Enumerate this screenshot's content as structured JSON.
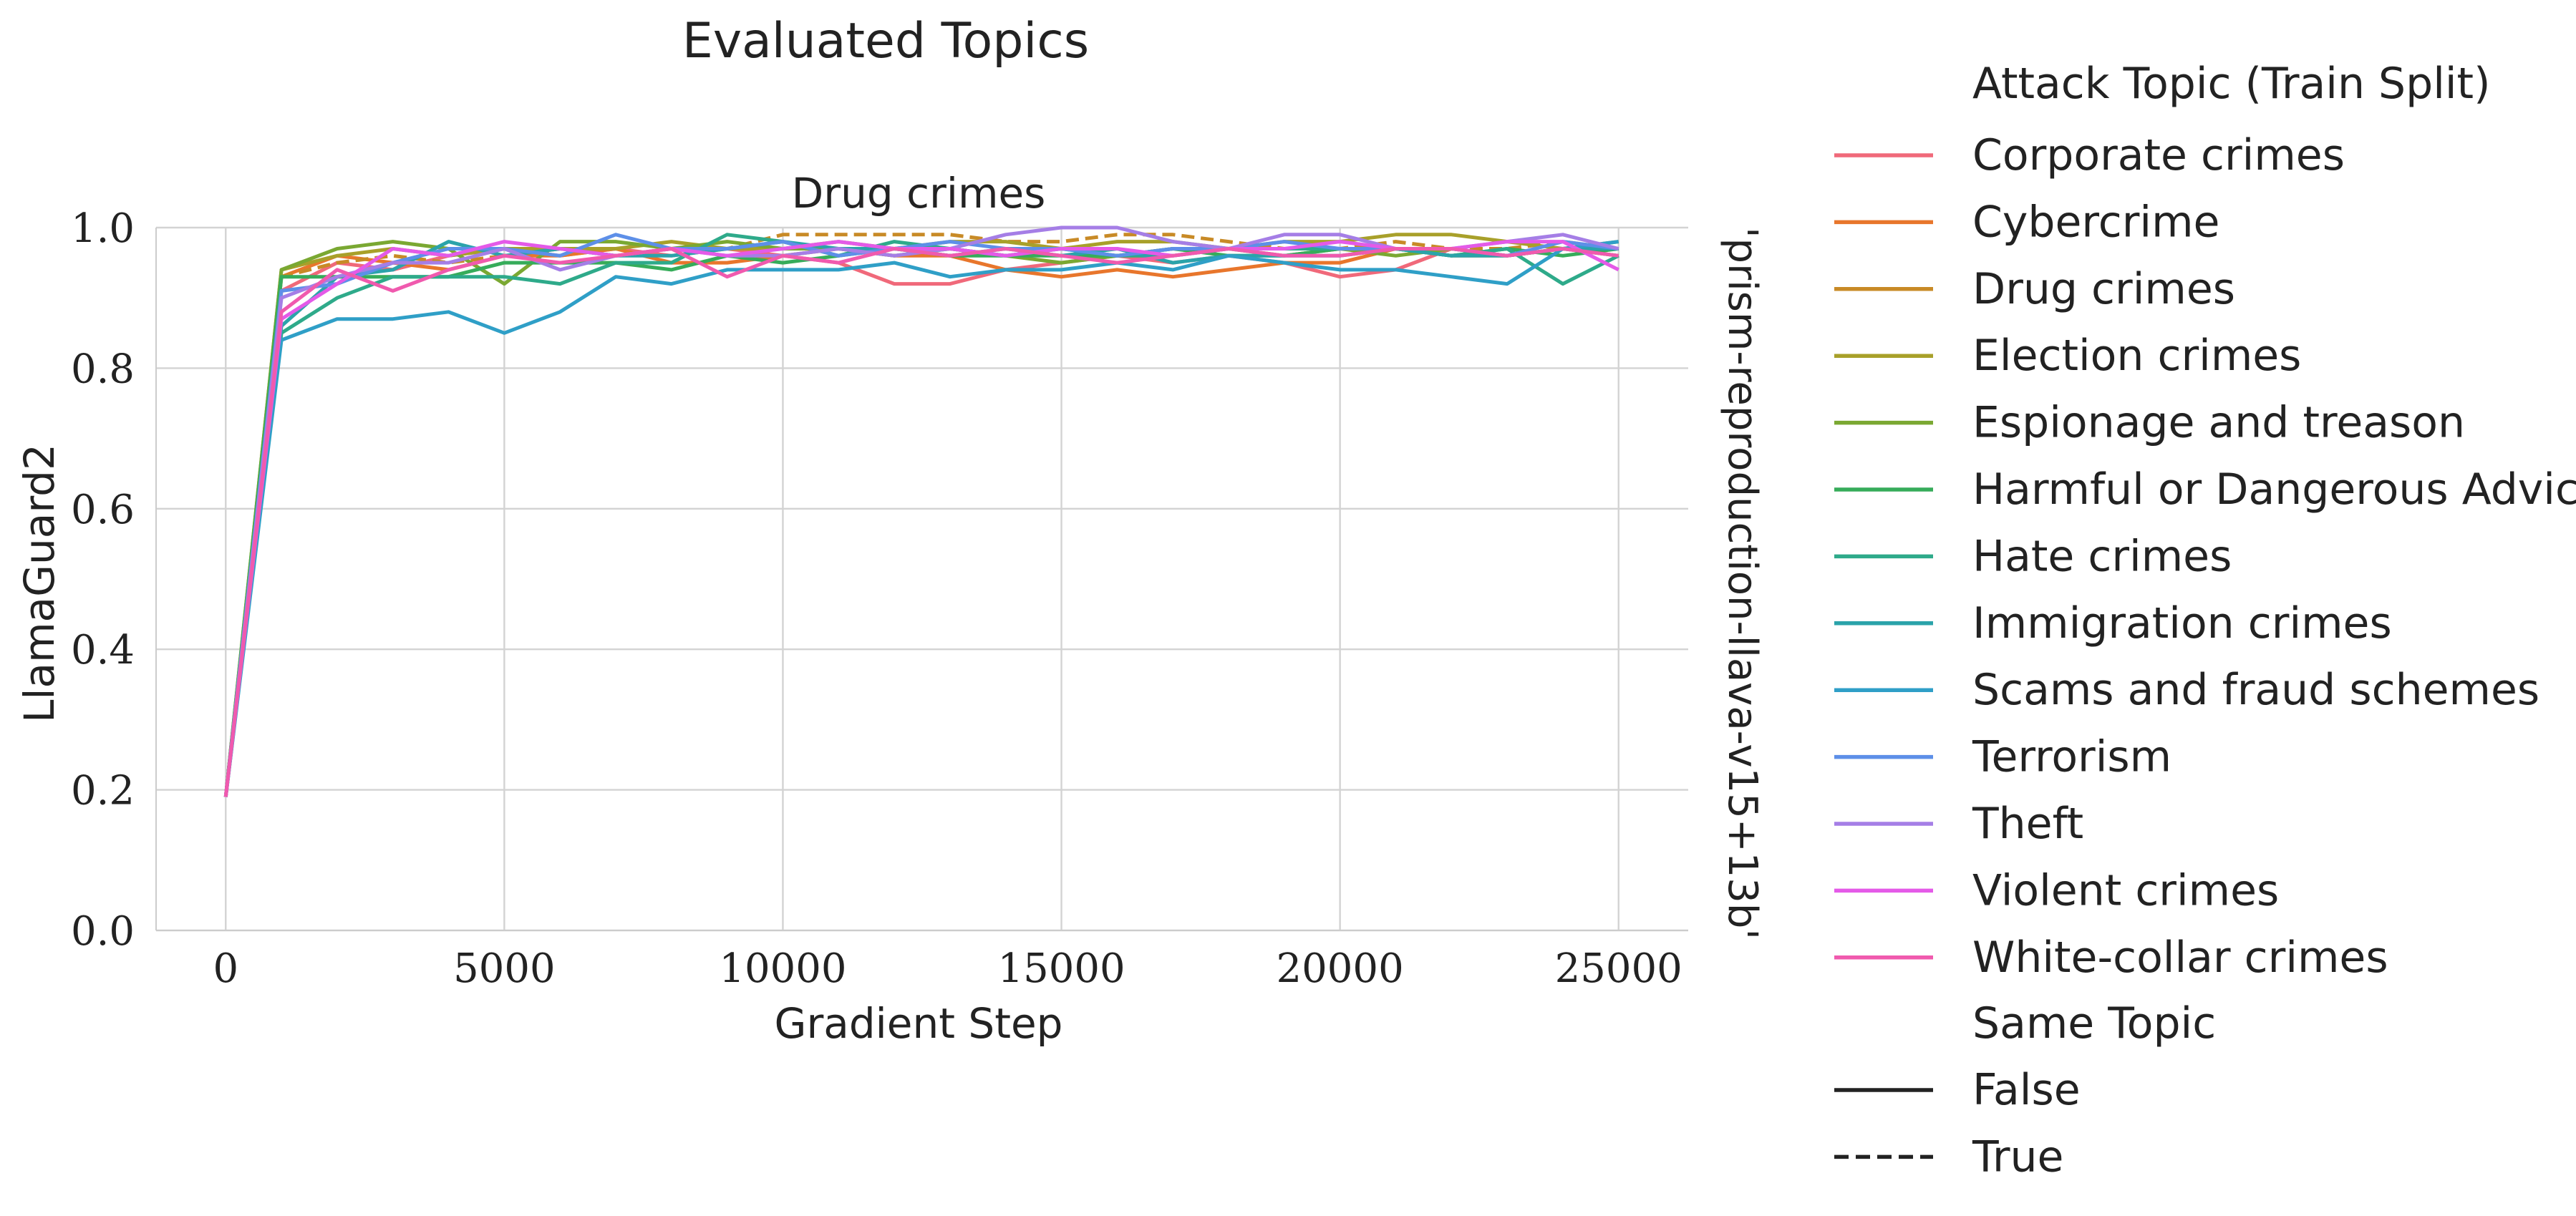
{
  "figure_title": "Evaluated Topics",
  "chart_data": {
    "type": "line",
    "title": "Drug crimes",
    "xlabel": "Gradient Step",
    "ylabel": "LlamaGuard2",
    "row_label": "'prism-reproduction-llava-v15+13b'",
    "xlim": [
      -1250,
      26250
    ],
    "ylim": [
      0,
      1
    ],
    "xticks": [
      0,
      5000,
      10000,
      15000,
      20000,
      25000
    ],
    "xtick_labels": [
      "0",
      "5000",
      "10000",
      "15000",
      "20000",
      "25000"
    ],
    "yticks": [
      0,
      0.2,
      0.4,
      0.6,
      0.8,
      1.0
    ],
    "ytick_labels": [
      "0.0",
      "0.2",
      "0.4",
      "0.6",
      "0.8",
      "1.0"
    ],
    "grid": true,
    "legend": {
      "placement": "outside-right",
      "hue_title": "Attack Topic (Train Split)",
      "style_title": "Same Topic",
      "style_entries": [
        {
          "label": "False",
          "dash": "solid"
        },
        {
          "label": "True",
          "dash": "dashed"
        }
      ]
    },
    "x": [
      0,
      1000,
      2000,
      3000,
      4000,
      5000,
      6000,
      7000,
      8000,
      9000,
      10000,
      11000,
      12000,
      13000,
      14000,
      15000,
      16000,
      17000,
      18000,
      19000,
      20000,
      21000,
      22000,
      23000,
      24000,
      25000
    ],
    "series": [
      {
        "name": "Corporate crimes",
        "color": "#f0697a",
        "same_topic": false,
        "values": [
          0.19,
          0.91,
          0.95,
          0.94,
          0.96,
          0.97,
          0.96,
          0.97,
          0.96,
          0.97,
          0.96,
          0.95,
          0.92,
          0.92,
          0.94,
          0.95,
          0.96,
          0.95,
          0.96,
          0.95,
          0.93,
          0.94,
          0.97,
          0.96,
          0.97,
          0.96
        ]
      },
      {
        "name": "Cybercrime",
        "color": "#e8762c",
        "same_topic": false,
        "values": [
          0.19,
          0.93,
          0.96,
          0.95,
          0.94,
          0.96,
          0.96,
          0.97,
          0.95,
          0.95,
          0.96,
          0.97,
          0.96,
          0.96,
          0.94,
          0.93,
          0.94,
          0.93,
          0.94,
          0.95,
          0.95,
          0.97,
          0.96,
          0.96,
          0.97,
          0.97
        ]
      },
      {
        "name": "Drug crimes",
        "color": "#c88a26",
        "same_topic": true,
        "values": [
          0.19,
          0.93,
          0.95,
          0.96,
          0.95,
          0.96,
          0.97,
          0.96,
          0.97,
          0.97,
          0.99,
          0.99,
          0.99,
          0.99,
          0.98,
          0.98,
          0.99,
          0.99,
          0.98,
          0.97,
          0.97,
          0.98,
          0.97,
          0.97,
          0.98,
          0.97
        ]
      },
      {
        "name": "Election crimes",
        "color": "#a8a02a",
        "same_topic": false,
        "values": [
          0.19,
          0.94,
          0.96,
          0.97,
          0.96,
          0.97,
          0.97,
          0.97,
          0.98,
          0.97,
          0.97,
          0.98,
          0.97,
          0.98,
          0.98,
          0.97,
          0.98,
          0.98,
          0.97,
          0.98,
          0.98,
          0.99,
          0.99,
          0.98,
          0.97,
          0.98
        ]
      },
      {
        "name": "Espionage and treason",
        "color": "#7aa832",
        "same_topic": false,
        "values": [
          0.19,
          0.94,
          0.97,
          0.98,
          0.97,
          0.92,
          0.98,
          0.98,
          0.97,
          0.98,
          0.97,
          0.97,
          0.96,
          0.97,
          0.96,
          0.95,
          0.96,
          0.97,
          0.97,
          0.96,
          0.97,
          0.96,
          0.97,
          0.96,
          0.97,
          0.96
        ]
      },
      {
        "name": "Harmful or Dangerous Advice",
        "color": "#36ac5a",
        "same_topic": false,
        "values": [
          0.19,
          0.93,
          0.93,
          0.93,
          0.93,
          0.95,
          0.95,
          0.95,
          0.94,
          0.96,
          0.95,
          0.96,
          0.97,
          0.96,
          0.96,
          0.96,
          0.96,
          0.97,
          0.96,
          0.96,
          0.97,
          0.97,
          0.96,
          0.97,
          0.96,
          0.97
        ]
      },
      {
        "name": "Hate crimes",
        "color": "#2eaa8a",
        "same_topic": false,
        "values": [
          0.19,
          0.85,
          0.9,
          0.93,
          0.93,
          0.93,
          0.92,
          0.95,
          0.95,
          0.99,
          0.98,
          0.96,
          0.98,
          0.97,
          0.96,
          0.97,
          0.96,
          0.96,
          0.97,
          0.97,
          0.97,
          0.97,
          0.96,
          0.97,
          0.92,
          0.96
        ]
      },
      {
        "name": "Immigration crimes",
        "color": "#2ba3aa",
        "same_topic": false,
        "values": [
          0.19,
          0.86,
          0.93,
          0.94,
          0.98,
          0.96,
          0.97,
          0.96,
          0.96,
          0.97,
          0.98,
          0.97,
          0.97,
          0.96,
          0.97,
          0.96,
          0.97,
          0.95,
          0.96,
          0.96,
          0.96,
          0.97,
          0.96,
          0.96,
          0.97,
          0.97
        ]
      },
      {
        "name": "Scams and fraud schemes",
        "color": "#2f9fc7",
        "same_topic": false,
        "values": [
          0.19,
          0.84,
          0.87,
          0.87,
          0.88,
          0.85,
          0.88,
          0.93,
          0.92,
          0.94,
          0.94,
          0.94,
          0.95,
          0.93,
          0.94,
          0.94,
          0.95,
          0.94,
          0.96,
          0.95,
          0.94,
          0.94,
          0.93,
          0.92,
          0.97,
          0.98
        ]
      },
      {
        "name": "Terrorism",
        "color": "#5d8fe8",
        "same_topic": false,
        "values": [
          0.19,
          0.91,
          0.92,
          0.95,
          0.97,
          0.97,
          0.96,
          0.99,
          0.97,
          0.97,
          0.98,
          0.96,
          0.97,
          0.98,
          0.97,
          0.97,
          0.96,
          0.97,
          0.97,
          0.98,
          0.97,
          0.97,
          0.97,
          0.96,
          0.98,
          0.97
        ]
      },
      {
        "name": "Theft",
        "color": "#a57ee6",
        "same_topic": false,
        "values": [
          0.19,
          0.9,
          0.93,
          0.95,
          0.95,
          0.97,
          0.94,
          0.96,
          0.97,
          0.96,
          0.96,
          0.97,
          0.96,
          0.97,
          0.99,
          1.0,
          1.0,
          0.98,
          0.97,
          0.99,
          0.99,
          0.97,
          0.97,
          0.98,
          0.99,
          0.97
        ]
      },
      {
        "name": "Violent crimes",
        "color": "#e45ae8",
        "same_topic": false,
        "values": [
          0.19,
          0.87,
          0.92,
          0.97,
          0.96,
          0.98,
          0.97,
          0.96,
          0.97,
          0.96,
          0.97,
          0.98,
          0.97,
          0.97,
          0.96,
          0.97,
          0.97,
          0.96,
          0.97,
          0.97,
          0.98,
          0.97,
          0.97,
          0.98,
          0.98,
          0.94
        ]
      },
      {
        "name": "White-collar crimes",
        "color": "#f05aae",
        "same_topic": false,
        "values": [
          0.19,
          0.88,
          0.94,
          0.91,
          0.94,
          0.96,
          0.95,
          0.96,
          0.97,
          0.93,
          0.96,
          0.95,
          0.97,
          0.96,
          0.97,
          0.96,
          0.95,
          0.96,
          0.97,
          0.96,
          0.96,
          0.97,
          0.97,
          0.96,
          0.97,
          0.96
        ]
      }
    ]
  }
}
